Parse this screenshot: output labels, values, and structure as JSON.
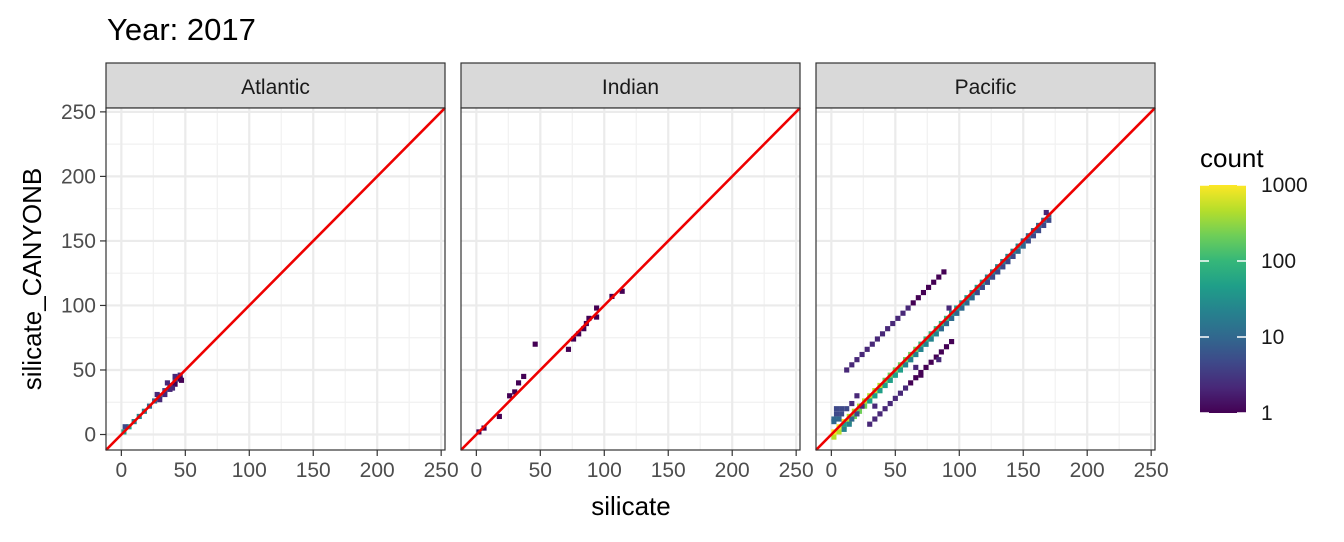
{
  "chart_data": {
    "type": "heatmap",
    "title": "Year: 2017",
    "xlabel": "silicate",
    "ylabel": "silicate_CANYONB",
    "xlim": [
      -12,
      253
    ],
    "ylim": [
      -12,
      253
    ],
    "x_ticks": [
      0,
      50,
      100,
      150,
      200,
      250
    ],
    "y_ticks": [
      0,
      50,
      100,
      150,
      200,
      250
    ],
    "bin_width": 4,
    "grid": true,
    "reference_line": {
      "slope": 1,
      "intercept": 0,
      "color": "#ee0000"
    },
    "legend": {
      "title": "count",
      "position": "right",
      "scale": "log10",
      "range": [
        1,
        1000
      ],
      "ticks": [
        1,
        10,
        100,
        1000
      ],
      "colors": [
        "#440154",
        "#482878",
        "#3e4989",
        "#31688e",
        "#26828e",
        "#1f9e89",
        "#35b779",
        "#6ece58",
        "#b5de2b",
        "#fde725"
      ]
    },
    "panels": [
      {
        "label": "Atlantic",
        "segments": [
          {
            "x0": 2,
            "x1": 46,
            "offset": 0,
            "width": 1,
            "cmax": 50,
            "cmin": 3
          },
          {
            "x0": 30,
            "x1": 46,
            "offset": -3,
            "width": 1,
            "cmax": 3,
            "cmin": 1
          }
        ],
        "points": [
          [
            3,
            6,
            5
          ],
          [
            42,
            45,
            2
          ],
          [
            47,
            42,
            1
          ],
          [
            36,
            40,
            2
          ],
          [
            28,
            31,
            3
          ],
          [
            40,
            36,
            2
          ]
        ]
      },
      {
        "label": "Indian",
        "segments": [],
        "points": [
          [
            2,
            2,
            1
          ],
          [
            6,
            5,
            1
          ],
          [
            18,
            14,
            1
          ],
          [
            26,
            30,
            1
          ],
          [
            30,
            33,
            1
          ],
          [
            33,
            40,
            1
          ],
          [
            37,
            45,
            1
          ],
          [
            46,
            70,
            1
          ],
          [
            72,
            66,
            1
          ],
          [
            76,
            74,
            1
          ],
          [
            80,
            78,
            1
          ],
          [
            84,
            82,
            1
          ],
          [
            86,
            86,
            1
          ],
          [
            88,
            90,
            1
          ],
          [
            94,
            91,
            1
          ],
          [
            94,
            98,
            1
          ],
          [
            106,
            107,
            1
          ],
          [
            114,
            111,
            1
          ]
        ]
      },
      {
        "label": "Pacific",
        "segments": [
          {
            "x0": 2,
            "x1": 170,
            "offset": 0,
            "width": 2,
            "cmax": 900,
            "cmin": 8
          },
          {
            "x0": 30,
            "x1": 145,
            "offset": -4,
            "width": 1,
            "cmax": 60,
            "cmin": 3
          },
          {
            "x0": 12,
            "x1": 90,
            "offset": 38,
            "width": 1,
            "cmax": 3,
            "cmin": 1
          },
          {
            "x0": 30,
            "x1": 96,
            "offset": -22,
            "width": 1,
            "cmax": 2,
            "cmin": 1
          }
        ],
        "points": [
          [
            4,
            16,
            6
          ],
          [
            4,
            20,
            5
          ],
          [
            8,
            16,
            5
          ],
          [
            8,
            20,
            4
          ],
          [
            12,
            20,
            4
          ],
          [
            16,
            24,
            3
          ],
          [
            20,
            30,
            3
          ],
          [
            2,
            10,
            8
          ],
          [
            2,
            12,
            10
          ],
          [
            6,
            12,
            8
          ],
          [
            168,
            172,
            2
          ],
          [
            92,
            98,
            3
          ],
          [
            24,
            22,
            3
          ],
          [
            20,
            16,
            6
          ],
          [
            16,
            12,
            12
          ],
          [
            10,
            8,
            40
          ],
          [
            10,
            4,
            30
          ],
          [
            14,
            8,
            20
          ],
          [
            34,
            22,
            2
          ],
          [
            70,
            46,
            1
          ],
          [
            84,
            58,
            2
          ],
          [
            66,
            52,
            2
          ]
        ]
      }
    ]
  }
}
